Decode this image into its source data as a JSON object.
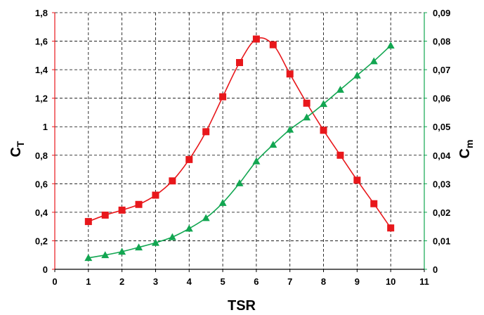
{
  "chart_data": {
    "type": "line",
    "xlabel": "TSR",
    "ylabel_left": {
      "main": "C",
      "sub": "T"
    },
    "ylabel_right": {
      "main": "C",
      "sub": "m"
    },
    "xlim": [
      0,
      11
    ],
    "ylim_left": [
      0,
      1.8
    ],
    "ylim_right": [
      0,
      0.09
    ],
    "x_ticks": [
      "0",
      "1",
      "2",
      "3",
      "4",
      "5",
      "6",
      "7",
      "8",
      "9",
      "10",
      "11"
    ],
    "y_ticks_left": [
      "0",
      "0,2",
      "0,4",
      "0,6",
      "0,8",
      "1",
      "1,2",
      "1,4",
      "1,6",
      "1,8"
    ],
    "y_ticks_right": [
      "0",
      "0,01",
      "0,02",
      "0,03",
      "0,04",
      "0,05",
      "0,06",
      "0,07",
      "0,08",
      "0,09"
    ],
    "grid": true,
    "colors": {
      "left_series": "#e8171b",
      "right_series": "#12a651",
      "left_axis": "#e8171b",
      "right_axis": "#12a651"
    },
    "series": [
      {
        "axis": "left",
        "marker": "square",
        "x": [
          1,
          1.5,
          2,
          2.5,
          3,
          3.5,
          4,
          4.5,
          5,
          5.5,
          6,
          6.5,
          7,
          7.5,
          8,
          8.5,
          9,
          9.5,
          10
        ],
        "values": [
          0.335,
          0.38,
          0.415,
          0.455,
          0.52,
          0.62,
          0.77,
          0.965,
          1.21,
          1.45,
          1.615,
          1.575,
          1.37,
          1.165,
          0.975,
          0.8,
          0.625,
          0.46,
          0.29
        ]
      },
      {
        "axis": "right",
        "marker": "triangle",
        "x": [
          1,
          1.5,
          2,
          2.5,
          3,
          3.5,
          4,
          4.5,
          5,
          5.5,
          6,
          6.5,
          7,
          7.5,
          8,
          8.5,
          9,
          9.5,
          10
        ],
        "values": [
          0.004,
          0.005,
          0.0062,
          0.0077,
          0.0093,
          0.0113,
          0.0143,
          0.018,
          0.0233,
          0.0302,
          0.0379,
          0.0437,
          0.049,
          0.0533,
          0.058,
          0.063,
          0.068,
          0.073,
          0.0785
        ]
      }
    ]
  }
}
